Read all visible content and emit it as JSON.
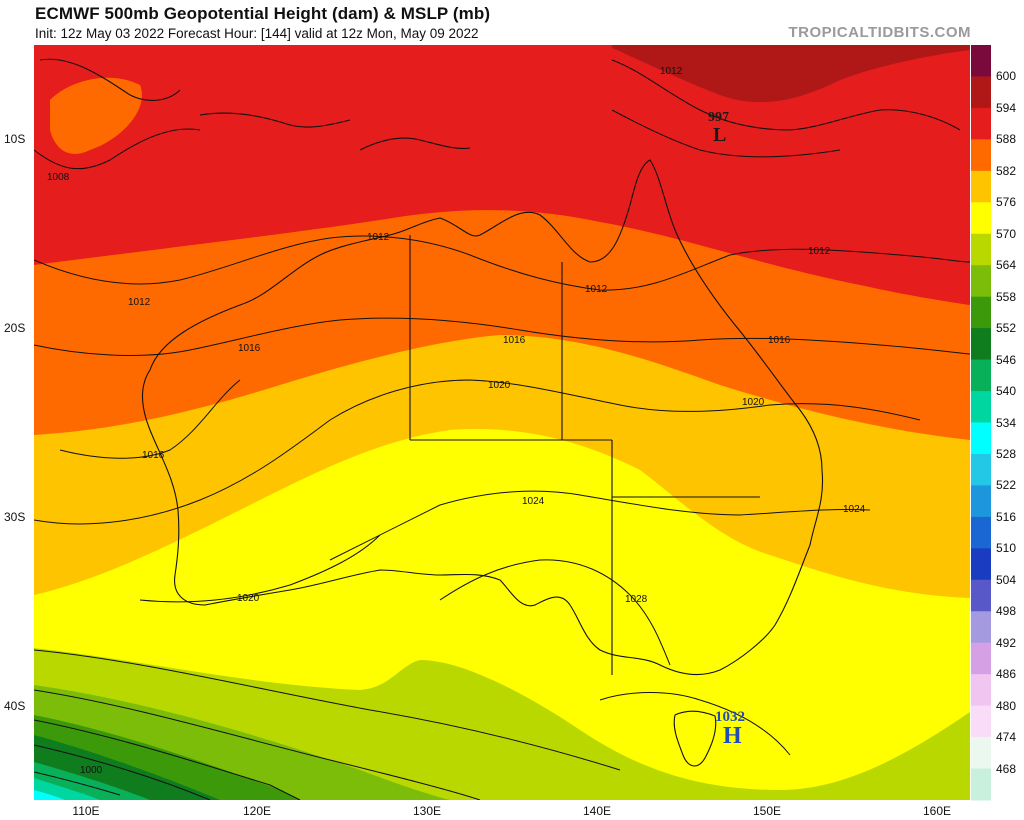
{
  "header": {
    "title": "ECMWF 500mb Geopotential Height (dam) & MSLP (mb)",
    "subtitle": "Init: 12z May 03 2022   Forecast Hour: [144]   valid at 12z Mon, May 09 2022",
    "source": "TROPICALTIDBITS.COM"
  },
  "axes": {
    "lat_labels": [
      "10S",
      "20S",
      "30S",
      "40S"
    ],
    "lon_labels": [
      "110E",
      "120E",
      "130E",
      "140E",
      "150E",
      "160E"
    ]
  },
  "colorbar": {
    "labels": [
      "600",
      "594",
      "588",
      "582",
      "576",
      "570",
      "564",
      "558",
      "552",
      "546",
      "540",
      "534",
      "528",
      "522",
      "516",
      "510",
      "504",
      "498",
      "492",
      "486",
      "480",
      "474",
      "468"
    ],
    "colors": [
      "#7a0a3c",
      "#b01818",
      "#e61d1d",
      "#ff6a00",
      "#ffc400",
      "#ffff00",
      "#b8d800",
      "#7cbd0a",
      "#3c9a0a",
      "#0f7d1e",
      "#08b05a",
      "#00d6a0",
      "#00ffff",
      "#22c8e6",
      "#1e96de",
      "#1a66d2",
      "#1a3cc0",
      "#5858c8",
      "#a49ae0",
      "#d6a0e4",
      "#f0c6f0",
      "#f8dcf8",
      "#eaf8f0",
      "#c8f0dc"
    ]
  },
  "mslp_labels": [
    "1008",
    "1012",
    "1012",
    "1012",
    "1012",
    "1012",
    "1016",
    "1016",
    "1016",
    "1016",
    "1020",
    "1020",
    "1020",
    "1024",
    "1024",
    "1028",
    "1000"
  ],
  "pressure_centers": {
    "high": {
      "letter": "H",
      "value": "1032"
    },
    "low": {
      "letter": "L",
      "value": "997"
    }
  }
}
